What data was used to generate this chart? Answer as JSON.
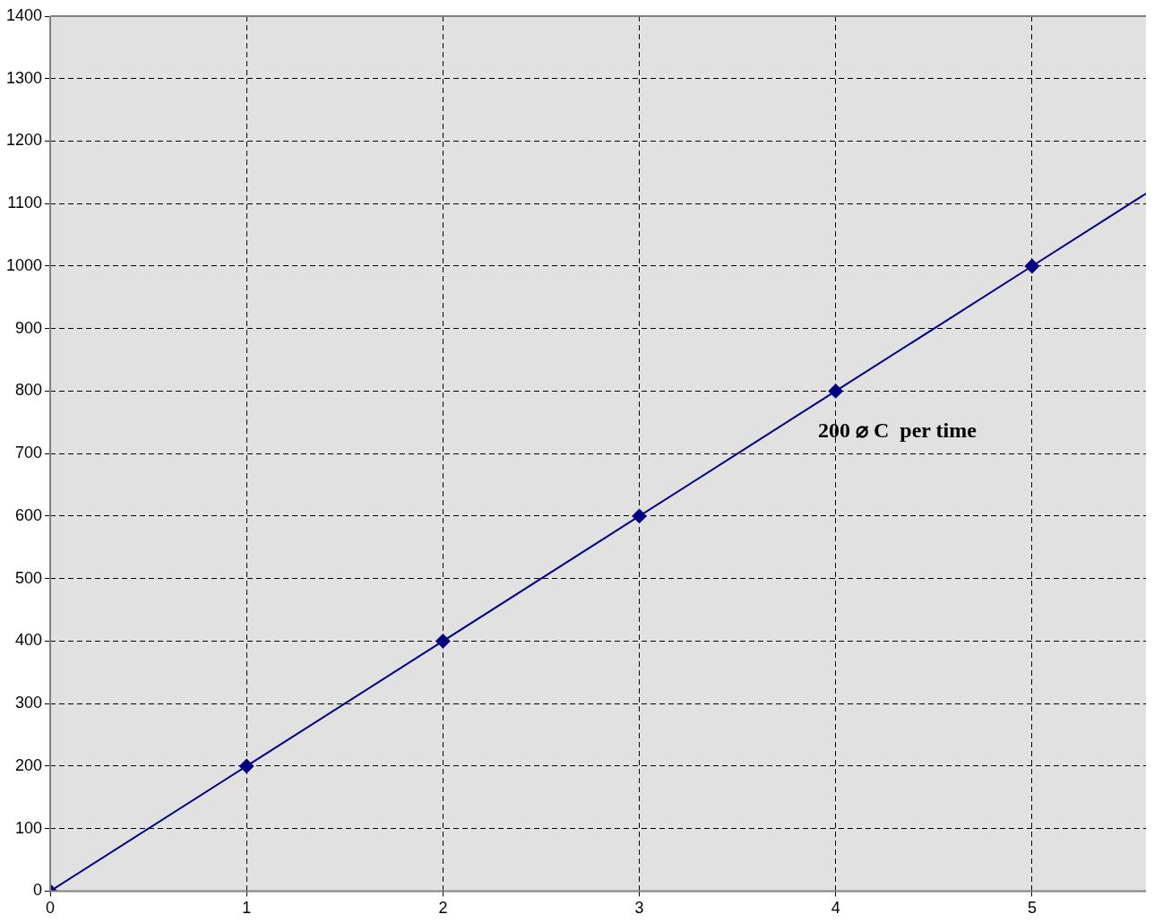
{
  "chart_data": {
    "type": "line",
    "xlim": [
      0,
      5.58
    ],
    "xticks": [
      0,
      1,
      2,
      3,
      4,
      5
    ],
    "ylim": [
      0,
      1400
    ],
    "yticks": [
      0,
      100,
      200,
      300,
      400,
      500,
      600,
      700,
      800,
      900,
      1000,
      1100,
      1200,
      1300,
      1400
    ],
    "grid": true,
    "legend": false,
    "line_style": "solid",
    "series": [
      {
        "color": "#000080",
        "marker": "diamond",
        "x": [
          0,
          1,
          2,
          3,
          4,
          5
        ],
        "values": [
          0,
          200,
          400,
          600,
          800,
          1000
        ]
      },
      {
        "color": "#000080",
        "marker": "none",
        "x": [
          5,
          5.58
        ],
        "values": [
          1000,
          1116
        ]
      }
    ],
    "annotations": [
      "200 ⌀ C  per time"
    ]
  }
}
